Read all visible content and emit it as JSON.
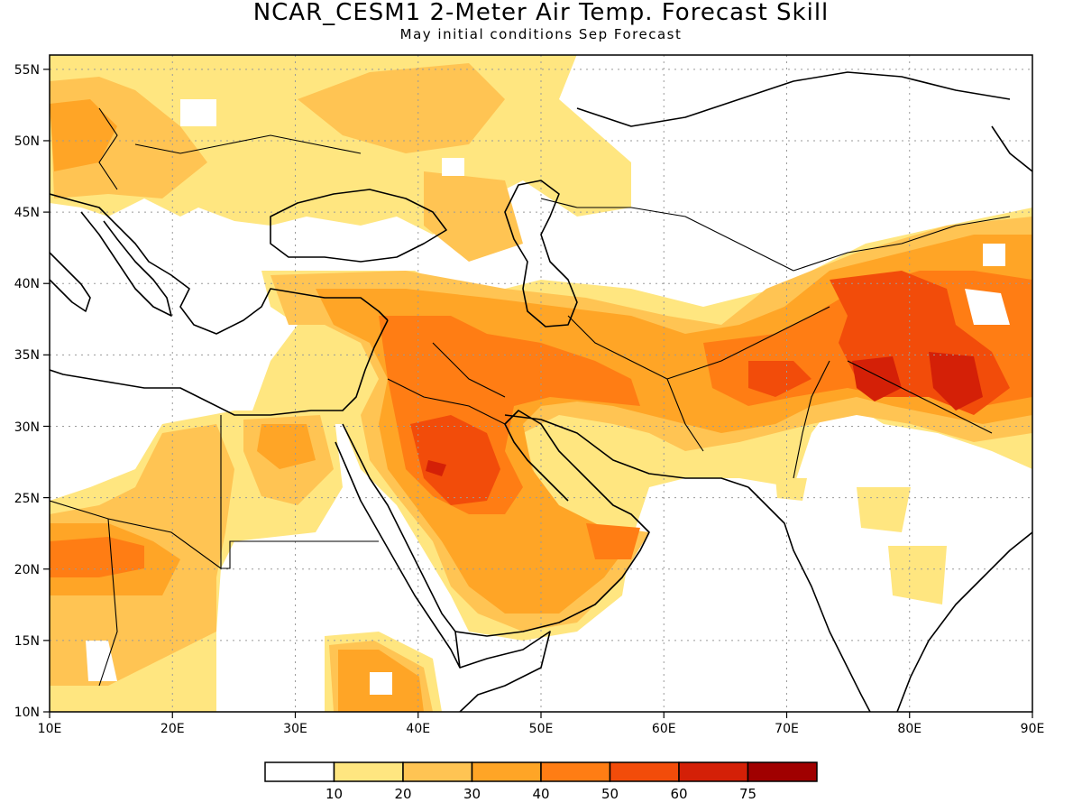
{
  "title": "NCAR_CESM1 2-Meter Air Temp. Forecast Skill",
  "subtitle": "May initial conditions  Sep Forecast",
  "map": {
    "lon_range": [
      10,
      90
    ],
    "lat_range": [
      10,
      56
    ],
    "lon_ticks": [
      "10E",
      "20E",
      "30E",
      "40E",
      "50E",
      "60E",
      "70E",
      "80E",
      "90E"
    ],
    "lat_ticks": [
      "10N",
      "15N",
      "20N",
      "25N",
      "30N",
      "35N",
      "40N",
      "45N",
      "50N",
      "55N"
    ],
    "gridlines": "dotted"
  },
  "colorbar": {
    "labels": [
      "10",
      "20",
      "30",
      "40",
      "50",
      "60",
      "75"
    ],
    "colors": [
      "#ffffff",
      "#ffe680",
      "#ffc453",
      "#ffa526",
      "#ff7d14",
      "#f24c0a",
      "#d42007",
      "#a00000"
    ]
  }
}
